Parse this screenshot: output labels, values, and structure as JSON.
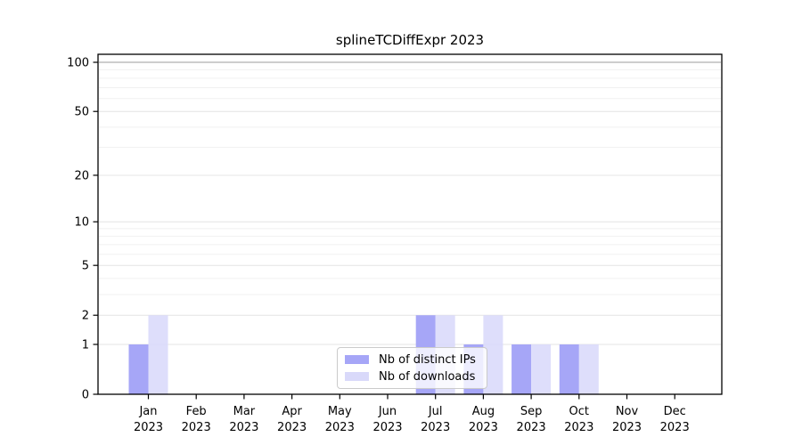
{
  "chart_data": {
    "type": "bar",
    "title": "splineTCDiffExpr 2023",
    "categories": [
      "Jan",
      "Feb",
      "Mar",
      "Apr",
      "May",
      "Jun",
      "Jul",
      "Aug",
      "Sep",
      "Oct",
      "Nov",
      "Dec"
    ],
    "year": "2023",
    "series": [
      {
        "name": "Nb of distinct IPs",
        "color": "#a6a6f7",
        "values": [
          1,
          0,
          0,
          0,
          0,
          0,
          2,
          1,
          1,
          1,
          0,
          0
        ]
      },
      {
        "name": "Nb of downloads",
        "color": "#d9d9fa",
        "values": [
          2,
          0,
          0,
          0,
          0,
          0,
          2,
          2,
          1,
          1,
          0,
          0
        ]
      }
    ],
    "xlabel": "",
    "ylabel": "",
    "yscale": "log1p",
    "ylim": [
      0,
      100
    ],
    "yticks": [
      0,
      1,
      2,
      5,
      10,
      20,
      50,
      100
    ],
    "grid": true,
    "legend_position": "bottom-center-inside"
  },
  "colors": {
    "grid_major": "#e4e4e4",
    "grid_minor": "#f1f1f1",
    "grid_top": "#b0b0b0",
    "axis": "#000000",
    "text": "#000000",
    "background": "#ffffff"
  }
}
